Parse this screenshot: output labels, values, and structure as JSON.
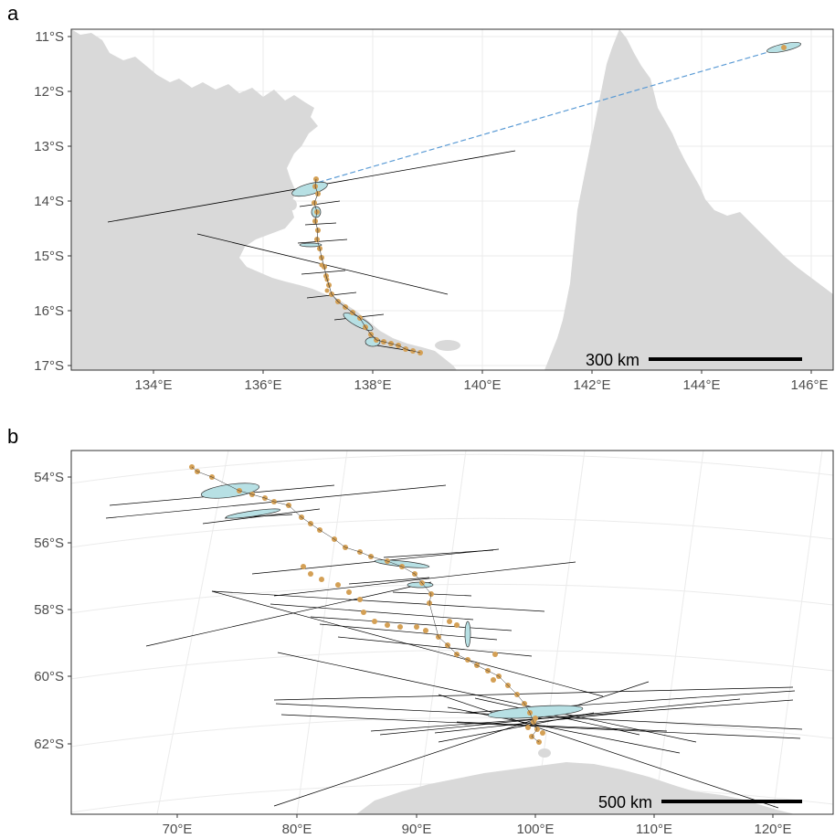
{
  "panels": [
    {
      "label": "a",
      "y_ticks": [
        "11°S",
        "12°S",
        "13°S",
        "14°S",
        "15°S",
        "16°S",
        "17°S"
      ],
      "x_ticks": [
        "134°E",
        "136°E",
        "138°E",
        "140°E",
        "142°E",
        "144°E",
        "146°E"
      ],
      "scale_bar_label": "300 km"
    },
    {
      "label": "b",
      "y_ticks": [
        "54°S",
        "56°S",
        "58°S",
        "60°S",
        "62°S"
      ],
      "x_ticks": [
        "70°E",
        "80°E",
        "90°E",
        "100°E",
        "110°E",
        "120°E"
      ],
      "scale_bar_label": "500 km"
    }
  ],
  "colors": {
    "land": "#d9d9d9",
    "grid": "#ebebeb",
    "track_points": "#d4a055",
    "error_ellipse_fill": "#b7e0e4",
    "error_line": "#000000",
    "gap_line": "#5b9bd5"
  }
}
